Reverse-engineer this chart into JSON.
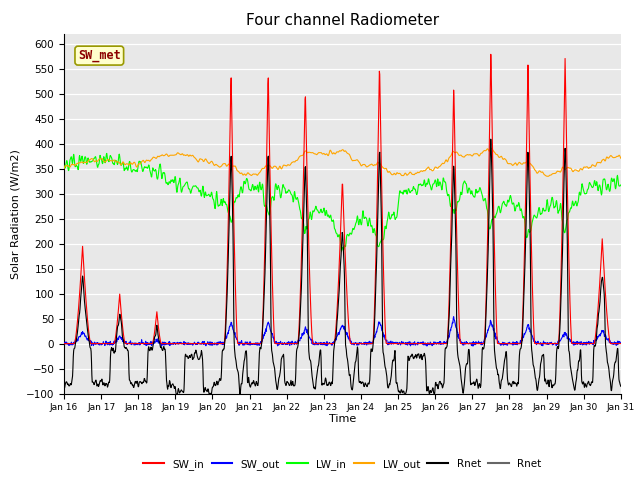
{
  "title": "Four channel Radiometer",
  "xlabel": "Time",
  "ylabel": "Solar Radiation (W/m2)",
  "ylim": [
    -100,
    620
  ],
  "annotation_text": "SW_met",
  "annotation_color": "#8B0000",
  "annotation_bg": "#FFFFCC",
  "annotation_border": "#999900",
  "bg_color": "#E8E8E8",
  "legend_entries": [
    "SW_in",
    "SW_out",
    "LW_in",
    "LW_out",
    "Rnet",
    "Rnet"
  ],
  "legend_colors": [
    "red",
    "blue",
    "lime",
    "orange",
    "black",
    "#666666"
  ],
  "x_tick_labels": [
    "Jan 16",
    "Jan 17",
    "Jan 18",
    "Jan 19",
    "Jan 20",
    "Jan 21",
    "Jan 22",
    "Jan 23",
    "Jan 24",
    "Jan 25",
    "Jan 26",
    "Jan 27",
    "Jan 28",
    "Jan 29",
    "Jan 30",
    "Jan 31"
  ],
  "yticks": [
    -100,
    -50,
    0,
    50,
    100,
    150,
    200,
    250,
    300,
    350,
    400,
    450,
    500,
    550,
    600
  ],
  "figsize": [
    6.4,
    4.8
  ],
  "dpi": 100
}
